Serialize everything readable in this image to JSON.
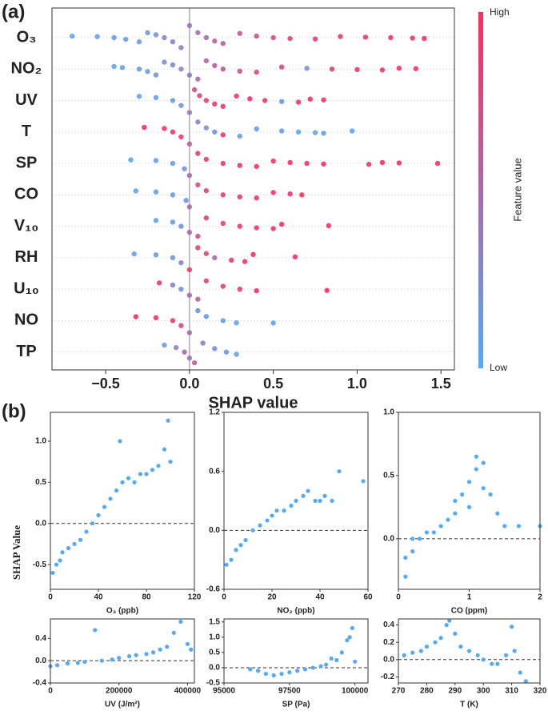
{
  "panel_labels": [
    "(a)",
    "(b)"
  ],
  "y_axis_label": "SHAP Value",
  "chart_data": [
    {
      "type": "beeswarm",
      "xlabel": "SHAP value",
      "colorbar_label": "Feature value",
      "colorbar_high": "High",
      "colorbar_low": "Low",
      "high_color": "#ff2b5e",
      "low_color": "#55aaf5",
      "xlim": [
        -0.82,
        1.58
      ],
      "xticks": [
        {
          "value": -0.5,
          "label": "−0.5"
        },
        {
          "value": 0,
          "label": "0.0"
        },
        0.5,
        {
          "value": 1,
          "label": "1.0"
        },
        1.5
      ],
      "series": [
        {
          "name": "O₃",
          "values": [
            -0.7,
            -0.55,
            -0.45,
            -0.38,
            -0.3,
            -0.25,
            -0.2,
            -0.15,
            -0.1,
            -0.05,
            0,
            0.05,
            0.1,
            0.15,
            0.2,
            0.3,
            0.4,
            0.5,
            0.6,
            0.75,
            0.9,
            1.05,
            1.2,
            1.33,
            1.4
          ],
          "feature_values": [
            0.02,
            0.05,
            0.08,
            0.1,
            0.12,
            0.15,
            0.2,
            0.25,
            0.3,
            0.35,
            0.4,
            0.45,
            0.5,
            0.55,
            0.6,
            0.65,
            0.7,
            0.75,
            0.8,
            0.85,
            0.88,
            0.9,
            0.92,
            0.95,
            0.98
          ]
        },
        {
          "name": "NO₂",
          "values": [
            -0.45,
            -0.4,
            -0.3,
            -0.25,
            -0.2,
            -0.15,
            -0.1,
            -0.05,
            0,
            0.05,
            0.1,
            0.15,
            0.2,
            0.3,
            0.4,
            0.55,
            0.7,
            0.85,
            1.0,
            1.15,
            1.25,
            1.35
          ],
          "feature_values": [
            0.05,
            0.08,
            0.1,
            0.12,
            0.15,
            0.2,
            0.25,
            0.3,
            0.4,
            0.5,
            0.55,
            0.6,
            0.65,
            0.7,
            0.75,
            0.8,
            0.2,
            0.9,
            0.92,
            0.95,
            0.97,
            0.98
          ]
        },
        {
          "name": "UV",
          "values": [
            -0.3,
            -0.2,
            -0.1,
            -0.05,
            0,
            0.03,
            0.06,
            0.1,
            0.15,
            0.2,
            0.28,
            0.36,
            0.45,
            0.55,
            0.65,
            0.72,
            0.8
          ],
          "feature_values": [
            0.05,
            0.08,
            0.1,
            0.15,
            0.4,
            0.7,
            0.8,
            0.85,
            0.9,
            0.9,
            0.92,
            0.95,
            0.9,
            0.1,
            0.95,
            0.98,
            0.95
          ]
        },
        {
          "name": "T",
          "values": [
            -0.27,
            -0.15,
            -0.1,
            -0.05,
            0,
            0.05,
            0.1,
            0.15,
            0.2,
            0.3,
            0.4,
            0.55,
            0.65,
            0.75,
            0.8,
            0.97
          ],
          "feature_values": [
            0.98,
            0.95,
            0.92,
            0.9,
            0.6,
            0.3,
            0.2,
            0.15,
            0.9,
            0.1,
            0.1,
            0.08,
            0.05,
            0.05,
            0.05,
            0.02
          ]
        },
        {
          "name": "SP",
          "values": [
            -0.35,
            -0.2,
            -0.1,
            -0.03,
            0,
            0.05,
            0.1,
            0.2,
            0.3,
            0.4,
            0.5,
            0.6,
            0.7,
            0.8,
            1.07,
            1.15,
            1.25,
            1.48
          ],
          "feature_values": [
            0.02,
            0.05,
            0.1,
            0.2,
            0.5,
            0.8,
            0.85,
            0.9,
            0.92,
            0.95,
            0.95,
            0.95,
            0.96,
            0.97,
            0.97,
            0.98,
            0.98,
            0.98
          ]
        },
        {
          "name": "CO",
          "values": [
            -0.32,
            -0.2,
            -0.1,
            -0.02,
            0,
            0.05,
            0.1,
            0.2,
            0.3,
            0.4,
            0.5,
            0.6,
            0.67
          ],
          "feature_values": [
            0.02,
            0.05,
            0.1,
            0.2,
            0.5,
            0.7,
            0.8,
            0.85,
            0.9,
            0.92,
            0.95,
            0.97,
            0.98
          ]
        },
        {
          "name": "V₁₀",
          "values": [
            -0.2,
            -0.1,
            -0.05,
            0,
            0.05,
            0.1,
            0.2,
            0.3,
            0.4,
            0.5,
            0.55,
            0.83
          ],
          "feature_values": [
            0.05,
            0.1,
            0.2,
            0.5,
            0.7,
            0.8,
            0.85,
            0.9,
            0.92,
            0.95,
            0.97,
            0.98
          ]
        },
        {
          "name": "RH",
          "values": [
            -0.33,
            -0.2,
            -0.1,
            -0.05,
            0,
            0.05,
            0.1,
            0.15,
            0.25,
            0.33,
            0.38,
            0.63
          ],
          "feature_values": [
            0.05,
            0.1,
            0.15,
            0.3,
            0.9,
            0.85,
            0.8,
            0.5,
            0.9,
            0.95,
            0.95,
            0.98
          ]
        },
        {
          "name": "U₁₀",
          "values": [
            -0.18,
            -0.1,
            -0.05,
            0,
            0.05,
            0.1,
            0.2,
            0.3,
            0.4,
            0.82
          ],
          "feature_values": [
            0.9,
            0.3,
            0.2,
            0.5,
            0.6,
            0.8,
            0.85,
            0.9,
            0.95,
            0.98
          ]
        },
        {
          "name": "NO",
          "values": [
            -0.32,
            -0.2,
            -0.1,
            -0.05,
            0,
            0.05,
            0.1,
            0.2,
            0.28,
            0.5
          ],
          "feature_values": [
            0.98,
            0.95,
            0.9,
            0.8,
            0.5,
            0.2,
            0.1,
            0.08,
            0.05,
            0.02
          ]
        },
        {
          "name": "TP",
          "values": [
            -0.15,
            -0.08,
            -0.03,
            0,
            0.03,
            0.08,
            0.15,
            0.22,
            0.28
          ],
          "feature_values": [
            0.1,
            0.3,
            0.5,
            0.4,
            0.6,
            0.3,
            0.2,
            0.1,
            0.05
          ]
        }
      ]
    },
    {
      "type": "scatter",
      "xlabel": "O₃ (ppb)",
      "color": "#55aaf5",
      "hline": 0,
      "x": [
        2,
        5,
        8,
        10,
        15,
        20,
        25,
        30,
        35,
        40,
        45,
        50,
        55,
        58,
        60,
        65,
        70,
        75,
        80,
        85,
        90,
        95,
        98,
        100
      ],
      "values": [
        -0.6,
        -0.5,
        -0.45,
        -0.35,
        -0.3,
        -0.25,
        -0.2,
        -0.1,
        0,
        0.1,
        0.2,
        0.3,
        0.4,
        1.0,
        0.5,
        0.55,
        0.5,
        0.6,
        0.6,
        0.65,
        0.7,
        0.9,
        1.25,
        0.75
      ],
      "xlim": [
        0,
        120
      ],
      "xticks": [
        0,
        40,
        80,
        120
      ],
      "ylim": [
        -0.8,
        1.35
      ],
      "yticks": [
        -0.5,
        {
          "value": 0,
          "label": "0.0"
        },
        0.5,
        {
          "value": 1,
          "label": "1.0"
        }
      ]
    },
    {
      "type": "scatter",
      "xlabel": "NO₂ (ppb)",
      "color": "#55aaf5",
      "hline": 0,
      "x": [
        1,
        3,
        5,
        7,
        9,
        12,
        15,
        18,
        20,
        22,
        25,
        28,
        30,
        33,
        35,
        38,
        40,
        42,
        45,
        48,
        58
      ],
      "values": [
        -0.35,
        -0.3,
        -0.2,
        -0.15,
        -0.1,
        0,
        0.05,
        0.1,
        0.15,
        0.2,
        0.2,
        0.25,
        0.3,
        0.35,
        0.4,
        0.3,
        0.3,
        0.35,
        0.3,
        0.6,
        0.5
      ],
      "xlim": [
        0,
        60
      ],
      "xticks": [
        0,
        20,
        40,
        60
      ],
      "ylim": [
        -0.6,
        1.2
      ],
      "yticks": [
        -0.6,
        {
          "value": 0,
          "label": "0.0"
        },
        0.6,
        1.2
      ]
    },
    {
      "type": "scatter",
      "xlabel": "CO (ppm)",
      "color": "#55aaf5",
      "hline": 0,
      "x": [
        0.1,
        0.1,
        0.2,
        0.2,
        0.3,
        0.4,
        0.5,
        0.6,
        0.7,
        0.8,
        0.8,
        0.9,
        1.0,
        1.0,
        1.1,
        1.1,
        1.2,
        1.2,
        1.3,
        1.4,
        1.5,
        1.7,
        2.0
      ],
      "values": [
        -0.3,
        -0.15,
        -0.1,
        0,
        0,
        0.05,
        0.05,
        0.1,
        0.15,
        0.2,
        0.3,
        0.35,
        0.25,
        0.45,
        0.55,
        0.65,
        0.6,
        0.4,
        0.35,
        0.2,
        0.1,
        0.1,
        0.1
      ],
      "xlim": [
        0,
        2
      ],
      "xticks": [
        0,
        1,
        2
      ],
      "ylim": [
        -0.4,
        1.0
      ],
      "yticks": [
        {
          "value": 0,
          "label": "0.0"
        },
        0.5,
        {
          "value": 1,
          "label": "1.0"
        }
      ]
    },
    {
      "type": "scatter",
      "xlabel": "UV (J/m²)",
      "color": "#55aaf5",
      "hline": 0,
      "x": [
        0,
        20000,
        50000,
        80000,
        100000,
        130000,
        150000,
        180000,
        200000,
        230000,
        250000,
        280000,
        300000,
        320000,
        340000,
        360000,
        380000,
        400000,
        410000
      ],
      "values": [
        -0.1,
        -0.08,
        -0.05,
        -0.04,
        -0.02,
        0.55,
        0,
        0.02,
        0.05,
        0.08,
        0.1,
        0.12,
        0.15,
        0.2,
        0.25,
        0.5,
        0.7,
        0.3,
        0.2
      ],
      "xlim": [
        0,
        420000
      ],
      "xticks": [
        0,
        200000,
        400000
      ],
      "ylim": [
        -0.4,
        0.75
      ],
      "yticks": [
        -0.4,
        {
          "value": 0,
          "label": "0.0"
        },
        0.4
      ]
    },
    {
      "type": "scatter",
      "xlabel": "SP (Pa)",
      "color": "#55aaf5",
      "hline": 0,
      "x": [
        96000,
        96300,
        96600,
        96900,
        97200,
        97500,
        97800,
        98100,
        98400,
        98700,
        98900,
        99100,
        99300,
        99500,
        99700,
        99800,
        99900,
        100000
      ],
      "values": [
        -0.05,
        -0.1,
        -0.2,
        -0.25,
        -0.2,
        -0.15,
        -0.1,
        -0.05,
        0,
        0.05,
        0.1,
        0.3,
        0.25,
        0.5,
        0.9,
        1.0,
        1.3,
        0.2
      ],
      "xlim": [
        95000,
        100500
      ],
      "xticks": [
        95000,
        97500,
        100000
      ],
      "ylim": [
        -0.5,
        1.6
      ],
      "yticks": [
        -0.5,
        {
          "value": 0,
          "label": "0.0"
        },
        0.5,
        {
          "value": 1,
          "label": "1.0"
        },
        1.5
      ]
    },
    {
      "type": "scatter",
      "xlabel": "T (K)",
      "color": "#55aaf5",
      "hline": 0,
      "x": [
        272,
        275,
        278,
        280,
        283,
        285,
        287,
        288,
        290,
        292,
        295,
        298,
        300,
        303,
        305,
        308,
        310,
        311,
        313,
        315
      ],
      "values": [
        0.05,
        0.08,
        0.1,
        0.15,
        0.2,
        0.25,
        0.4,
        0.45,
        0.3,
        0.15,
        0.1,
        0.05,
        0,
        -0.05,
        -0.05,
        0.05,
        0.38,
        0.1,
        -0.15,
        -0.25
      ],
      "xlim": [
        270,
        320
      ],
      "xticks": [
        270,
        280,
        290,
        300,
        310,
        320
      ],
      "ylim": [
        -0.27,
        0.47
      ],
      "yticks": [
        -0.2,
        {
          "value": 0,
          "label": "0.0"
        },
        0.2,
        0.4
      ]
    }
  ]
}
